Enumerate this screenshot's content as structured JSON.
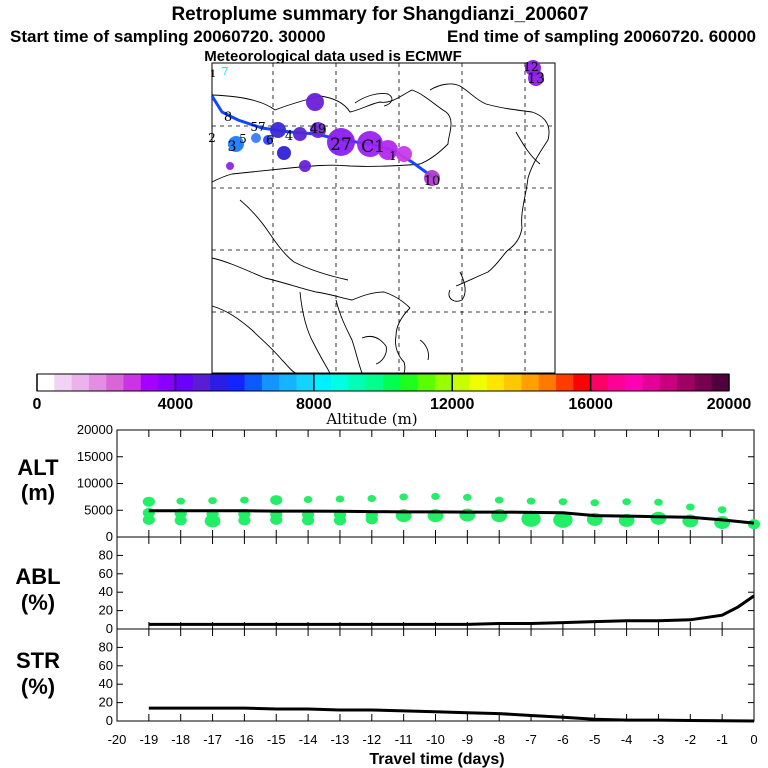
{
  "titles": {
    "main": "Retroplume summary for Shangdianzi_200607",
    "start": "Start time of sampling 20060720. 30000",
    "end": "End time of sampling 20060720. 60000",
    "met": "Meteorological data used is ECMWF"
  },
  "colors": {
    "scale": [
      "#ffffff",
      "#f3d3f3",
      "#ebb3eb",
      "#e38de3",
      "#d966d9",
      "#cc33e6",
      "#a600ff",
      "#8800ff",
      "#6a00ff",
      "#5a1ed2",
      "#2a1ee6",
      "#1424ff",
      "#0a5aff",
      "#1494ff",
      "#14b4ff",
      "#14d4ff",
      "#00f0ff",
      "#00ffe0",
      "#00ffb4",
      "#00ff8c",
      "#00ff50",
      "#1eff1e",
      "#5aff00",
      "#96ff00",
      "#c8ff00",
      "#f0ff00",
      "#ffe600",
      "#ffc800",
      "#ffa000",
      "#ff7800",
      "#ff3c00",
      "#ff0000",
      "#ff0064",
      "#ff0096",
      "#ff00b4",
      "#e6009a",
      "#c8007d",
      "#a00064",
      "#780050",
      "#50003c"
    ],
    "alt_marker": "#22ee66",
    "line": "#000000"
  },
  "colorbar": {
    "tick_labels": [
      "0",
      "4000",
      "8000",
      "12000",
      "16000",
      "20000"
    ],
    "title": "Altitude (m)"
  },
  "map_labels": [
    {
      "text": "7",
      "color": "#00e0ff"
    },
    {
      "text": "1"
    },
    {
      "text": "8"
    },
    {
      "text": "57"
    },
    {
      "text": "2"
    },
    {
      "text": "5"
    },
    {
      "text": "4"
    },
    {
      "text": "6"
    },
    {
      "text": "49"
    },
    {
      "text": "3"
    },
    {
      "text": "27"
    },
    {
      "text": "C1"
    },
    {
      "text": "1"
    },
    {
      "text": "10"
    },
    {
      "text": "13"
    },
    {
      "text": "12"
    }
  ],
  "chart_data": [
    {
      "type": "scatter+line",
      "panel": "ALT",
      "ylabel_line1": "ALT",
      "ylabel_line2": "(m)",
      "ylim": [
        0,
        20000
      ],
      "yticks": [
        "0",
        "5000",
        "10000",
        "15000",
        "20000"
      ],
      "line": {
        "x": [
          -19,
          -18,
          -17,
          -16,
          -15,
          -14,
          -13,
          -12,
          -11,
          -10,
          -9,
          -8,
          -7,
          -6,
          -5,
          -4,
          -3,
          -2,
          -1,
          0
        ],
        "y": [
          4900,
          4900,
          4900,
          4900,
          4850,
          4850,
          4800,
          4750,
          4700,
          4700,
          4650,
          4650,
          4600,
          4550,
          4000,
          3900,
          3800,
          3700,
          3200,
          2600
        ]
      },
      "clusters": [
        {
          "x": -19,
          "alts": [
            4500,
            6600,
            3200
          ],
          "sizes": [
            2,
            2,
            2
          ]
        },
        {
          "x": -18,
          "alts": [
            4400,
            6700,
            3100
          ],
          "sizes": [
            2,
            1,
            2
          ]
        },
        {
          "x": -17,
          "alts": [
            4300,
            6800,
            3000
          ],
          "sizes": [
            2,
            1,
            3
          ]
        },
        {
          "x": -16,
          "alts": [
            4300,
            6900,
            3100
          ],
          "sizes": [
            2,
            1,
            2
          ]
        },
        {
          "x": -15,
          "alts": [
            4200,
            6900,
            3200
          ],
          "sizes": [
            2,
            2,
            2
          ]
        },
        {
          "x": -14,
          "alts": [
            4200,
            7000,
            3100
          ],
          "sizes": [
            2,
            1,
            2
          ]
        },
        {
          "x": -13,
          "alts": [
            4200,
            7100,
            3100
          ],
          "sizes": [
            2,
            1,
            2
          ]
        },
        {
          "x": -12,
          "alts": [
            4100,
            7200,
            3300
          ],
          "sizes": [
            2,
            1,
            2
          ]
        },
        {
          "x": -11,
          "alts": [
            4000,
            7500
          ],
          "sizes": [
            3,
            1
          ]
        },
        {
          "x": -10,
          "alts": [
            4000,
            7600
          ],
          "sizes": [
            3,
            1
          ]
        },
        {
          "x": -9,
          "alts": [
            4100,
            7400
          ],
          "sizes": [
            3,
            1
          ]
        },
        {
          "x": -8,
          "alts": [
            4000,
            6900
          ],
          "sizes": [
            3,
            1
          ]
        },
        {
          "x": -7,
          "alts": [
            3400,
            6700
          ],
          "sizes": [
            4,
            1
          ]
        },
        {
          "x": -6,
          "alts": [
            3200,
            6600
          ],
          "sizes": [
            4,
            1
          ]
        },
        {
          "x": -5,
          "alts": [
            3300,
            6400
          ],
          "sizes": [
            3,
            1
          ]
        },
        {
          "x": -4,
          "alts": [
            3100,
            6600
          ],
          "sizes": [
            3,
            1
          ]
        },
        {
          "x": -3,
          "alts": [
            3500,
            6500
          ],
          "sizes": [
            3,
            1
          ]
        },
        {
          "x": -2,
          "alts": [
            3000,
            5600
          ],
          "sizes": [
            3,
            1
          ]
        },
        {
          "x": -1,
          "alts": [
            2700,
            5100
          ],
          "sizes": [
            3,
            1
          ]
        },
        {
          "x": 0,
          "alts": [
            2400
          ],
          "sizes": [
            2
          ]
        }
      ]
    },
    {
      "type": "line",
      "panel": "ABL",
      "ylabel_line1": "ABL",
      "ylabel_line2": "(%)",
      "ylim": [
        0,
        100
      ],
      "yticks": [
        "0",
        "20",
        "40",
        "60",
        "80"
      ],
      "x": [
        -19,
        -18,
        -17,
        -16,
        -15,
        -14,
        -13,
        -12,
        -11,
        -10,
        -9,
        -8,
        -7,
        -6,
        -5,
        -4,
        -3,
        -2,
        -1,
        -0.5,
        0
      ],
      "y": [
        5,
        5,
        5,
        5,
        5,
        5,
        5,
        5,
        5,
        5,
        5,
        6,
        6,
        7,
        8,
        9,
        9,
        10,
        15,
        24,
        36
      ]
    },
    {
      "type": "line",
      "panel": "STR",
      "ylabel_line1": "STR",
      "ylabel_line2": "(%)",
      "ylim": [
        0,
        100
      ],
      "yticks": [
        "0",
        "20",
        "40",
        "60",
        "80"
      ],
      "x": [
        -19,
        -18,
        -17,
        -16,
        -15,
        -14,
        -13,
        -12,
        -11,
        -10,
        -9,
        -8,
        -7,
        -6,
        -5,
        -4,
        -3,
        -2,
        -1,
        0
      ],
      "y": [
        14,
        14,
        14,
        14,
        13,
        13,
        12,
        12,
        11,
        10,
        9,
        8,
        6,
        4,
        2,
        1,
        1,
        0.5,
        0.3,
        0
      ]
    }
  ],
  "xaxis": {
    "ticks": [
      "-20",
      "-19",
      "-18",
      "-17",
      "-16",
      "-15",
      "-14",
      "-13",
      "-12",
      "-11",
      "-10",
      "-9",
      "-8",
      "-7",
      "-6",
      "-5",
      "-4",
      "-3",
      "-2",
      "-1",
      "0"
    ],
    "label": "Travel time (days)"
  }
}
